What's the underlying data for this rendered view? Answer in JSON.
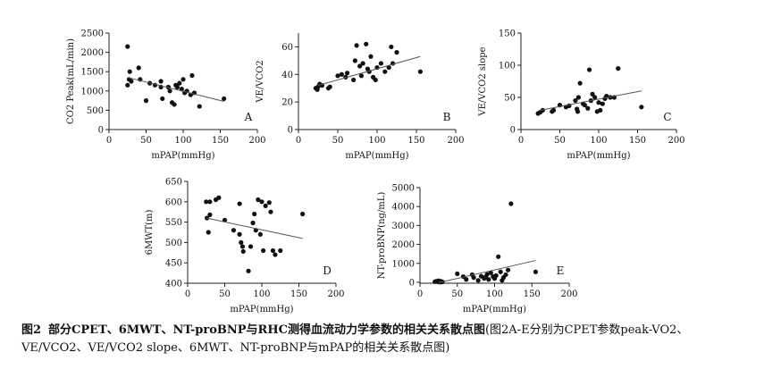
{
  "chart_data": [
    {
      "type": "scatter",
      "panel_label": "A",
      "xlabel": "mPAP(mmHg)",
      "ylabel": "CO2 Peak(mL/min)",
      "xlim": [
        0,
        200
      ],
      "ylim": [
        0,
        2500
      ],
      "xticks": [
        0,
        50,
        100,
        150,
        200
      ],
      "yticks": [
        0,
        500,
        1000,
        1500,
        2000,
        2500
      ],
      "grid": false,
      "points": [
        [
          25,
          2150
        ],
        [
          25,
          1150
        ],
        [
          27,
          1300
        ],
        [
          28,
          1500
        ],
        [
          30,
          1250
        ],
        [
          40,
          1600
        ],
        [
          42,
          1300
        ],
        [
          50,
          750
        ],
        [
          55,
          1200
        ],
        [
          62,
          1150
        ],
        [
          70,
          1250
        ],
        [
          70,
          1100
        ],
        [
          72,
          800
        ],
        [
          80,
          1100
        ],
        [
          82,
          1000
        ],
        [
          85,
          700
        ],
        [
          88,
          650
        ],
        [
          90,
          1150
        ],
        [
          92,
          1100
        ],
        [
          95,
          1200
        ],
        [
          98,
          1050
        ],
        [
          100,
          1300
        ],
        [
          102,
          950
        ],
        [
          105,
          1000
        ],
        [
          110,
          900
        ],
        [
          112,
          1400
        ],
        [
          115,
          950
        ],
        [
          122,
          600
        ],
        [
          155,
          800
        ]
      ],
      "trend": [
        [
          25,
          1350
        ],
        [
          155,
          730
        ]
      ]
    },
    {
      "type": "scatter",
      "panel_label": "B",
      "xlabel": "mPAP(mmHg)",
      "ylabel": "VE/VCO2",
      "xlim": [
        0,
        200
      ],
      "ylim": [
        0,
        70
      ],
      "xticks": [
        0,
        50,
        100,
        150,
        200
      ],
      "yticks": [
        0,
        20,
        40,
        60
      ],
      "grid": false,
      "points": [
        [
          22,
          30
        ],
        [
          24,
          29
        ],
        [
          25,
          31
        ],
        [
          27,
          33
        ],
        [
          30,
          32
        ],
        [
          38,
          30
        ],
        [
          40,
          31
        ],
        [
          50,
          39
        ],
        [
          55,
          40
        ],
        [
          60,
          38
        ],
        [
          62,
          41
        ],
        [
          70,
          36
        ],
        [
          72,
          50
        ],
        [
          74,
          61
        ],
        [
          78,
          46
        ],
        [
          80,
          39
        ],
        [
          82,
          48
        ],
        [
          86,
          62
        ],
        [
          88,
          44
        ],
        [
          90,
          42
        ],
        [
          92,
          53
        ],
        [
          95,
          38
        ],
        [
          98,
          36
        ],
        [
          100,
          45
        ],
        [
          105,
          48
        ],
        [
          110,
          42
        ],
        [
          115,
          45
        ],
        [
          118,
          60
        ],
        [
          120,
          48
        ],
        [
          125,
          56
        ],
        [
          155,
          42
        ]
      ],
      "trend": [
        [
          25,
          32
        ],
        [
          155,
          53
        ]
      ]
    },
    {
      "type": "scatter",
      "panel_label": "C",
      "xlabel": "mPAP(mmHg)",
      "ylabel": "VE/VCO2 slope",
      "xlim": [
        0,
        200
      ],
      "ylim": [
        0,
        150
      ],
      "xticks": [
        0,
        50,
        100,
        150,
        200
      ],
      "yticks": [
        0,
        50,
        100,
        150
      ],
      "grid": false,
      "points": [
        [
          22,
          25
        ],
        [
          25,
          27
        ],
        [
          28,
          30
        ],
        [
          40,
          28
        ],
        [
          42,
          30
        ],
        [
          50,
          38
        ],
        [
          58,
          35
        ],
        [
          62,
          37
        ],
        [
          70,
          45
        ],
        [
          72,
          32
        ],
        [
          73,
          28
        ],
        [
          74,
          50
        ],
        [
          76,
          72
        ],
        [
          80,
          40
        ],
        [
          82,
          38
        ],
        [
          86,
          33
        ],
        [
          88,
          93
        ],
        [
          90,
          45
        ],
        [
          92,
          55
        ],
        [
          95,
          50
        ],
        [
          98,
          28
        ],
        [
          100,
          42
        ],
        [
          102,
          30
        ],
        [
          105,
          40
        ],
        [
          108,
          48
        ],
        [
          110,
          52
        ],
        [
          115,
          50
        ],
        [
          120,
          50
        ],
        [
          125,
          95
        ],
        [
          155,
          35
        ]
      ],
      "trend": [
        [
          25,
          30
        ],
        [
          155,
          60
        ]
      ]
    },
    {
      "type": "scatter",
      "panel_label": "D",
      "xlabel": "mPAP(mmHg)",
      "ylabel": "6MWT(m)",
      "xlim": [
        0,
        200
      ],
      "ylim": [
        400,
        650
      ],
      "xticks": [
        0,
        50,
        100,
        150,
        200
      ],
      "yticks": [
        400,
        450,
        500,
        550,
        600,
        650
      ],
      "grid": false,
      "points": [
        [
          25,
          600
        ],
        [
          26,
          560
        ],
        [
          28,
          525
        ],
        [
          30,
          568
        ],
        [
          30,
          600
        ],
        [
          38,
          605
        ],
        [
          42,
          610
        ],
        [
          50,
          555
        ],
        [
          62,
          530
        ],
        [
          70,
          595
        ],
        [
          70,
          520
        ],
        [
          72,
          500
        ],
        [
          74,
          490
        ],
        [
          75,
          478
        ],
        [
          82,
          430
        ],
        [
          85,
          490
        ],
        [
          88,
          548
        ],
        [
          90,
          570
        ],
        [
          92,
          530
        ],
        [
          95,
          605
        ],
        [
          98,
          520
        ],
        [
          100,
          600
        ],
        [
          102,
          480
        ],
        [
          105,
          590
        ],
        [
          110,
          598
        ],
        [
          112,
          575
        ],
        [
          115,
          480
        ],
        [
          118,
          470
        ],
        [
          125,
          480
        ],
        [
          155,
          570
        ]
      ],
      "trend": [
        [
          25,
          560
        ],
        [
          155,
          510
        ]
      ]
    },
    {
      "type": "scatter",
      "panel_label": "E",
      "xlabel": "mPAP(mmHg)",
      "ylabel": "NT-proBNP(ng/mL)",
      "xlim": [
        0,
        200
      ],
      "ylim": [
        -50,
        5000
      ],
      "xticks": [
        0,
        50,
        100,
        150,
        200
      ],
      "yticks": [
        0,
        1000,
        2000,
        3000,
        4000,
        5000
      ],
      "grid": false,
      "points": [
        [
          20,
          30
        ],
        [
          22,
          60
        ],
        [
          24,
          20
        ],
        [
          25,
          80
        ],
        [
          26,
          40
        ],
        [
          27,
          10
        ],
        [
          28,
          50
        ],
        [
          30,
          20
        ],
        [
          50,
          450
        ],
        [
          58,
          300
        ],
        [
          62,
          150
        ],
        [
          70,
          400
        ],
        [
          72,
          250
        ],
        [
          78,
          100
        ],
        [
          82,
          320
        ],
        [
          86,
          200
        ],
        [
          88,
          280
        ],
        [
          90,
          420
        ],
        [
          92,
          150
        ],
        [
          95,
          500
        ],
        [
          98,
          300
        ],
        [
          100,
          200
        ],
        [
          102,
          350
        ],
        [
          105,
          1350
        ],
        [
          108,
          550
        ],
        [
          110,
          100
        ],
        [
          112,
          250
        ],
        [
          115,
          400
        ],
        [
          118,
          650
        ],
        [
          122,
          4150
        ],
        [
          155,
          550
        ]
      ],
      "trend": [
        [
          25,
          -20
        ],
        [
          155,
          1150
        ]
      ]
    }
  ],
  "caption": {
    "label": "图2",
    "title": "部分CPET、6MWT、NT-proBNP与RHC测得血流动力学参数的相关关系散点图",
    "note": "(图2A-E分别为CPET参数peak-VO2、VE/VCO2、VE/VCO2 slope、6MWT、NT-proBNP与mPAP的相关关系散点图)"
  }
}
